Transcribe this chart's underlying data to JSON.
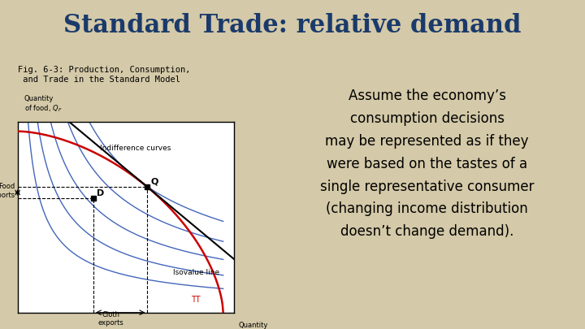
{
  "title": "Standard Trade: relative demand",
  "title_color": "#1a3a6b",
  "bg_color": "#d4c9a8",
  "fig_caption": "Fig. 6-3: Production, Consumption,\n and Trade in the Standard Model",
  "right_text": "Assume the economy’s\nconsumption decisions\nmay be represented as if they\nwere based on the tastes of a\nsingle representative consumer\n(changing income distribution\ndoesn’t change demand).",
  "plot_bg": "#ffffff",
  "isovalue_label": "Isovalue line",
  "indifference_label": "Indifference curves",
  "food_imports_label": "Food\nimports",
  "cloth_exports_label": "Cloth\nexports",
  "tt_label": "TT",
  "D_label": "D",
  "Q_label": "Q",
  "xlabel": "Quantity\nof cloth, $Q_C$",
  "ylabel": "Quantity\nof food, $Q_F$"
}
